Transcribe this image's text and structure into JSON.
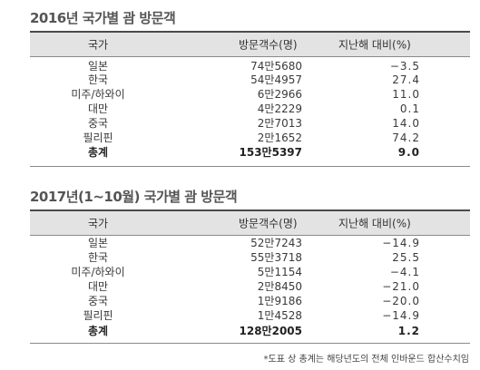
{
  "table1": {
    "title": "2016년 국가별 괌 방문객",
    "headers": [
      "국가",
      "방문객수(명)",
      "지난해 대비(%)"
    ],
    "rows": [
      {
        "country": "일본",
        "visitors": "74만5680",
        "change": "−3.5"
      },
      {
        "country": "한국",
        "visitors": "54만4957",
        "change": "27.4"
      },
      {
        "country": "미주/하와이",
        "visitors": "6만2966",
        "change": "11.0"
      },
      {
        "country": "대만",
        "visitors": "4만2229",
        "change": "0.1"
      },
      {
        "country": "중국",
        "visitors": "2만7013",
        "change": "14.0"
      },
      {
        "country": "필리핀",
        "visitors": "2만1652",
        "change": "74.2"
      }
    ],
    "total": {
      "country": "총계",
      "visitors": "153만5397",
      "change": "9.0"
    }
  },
  "table2": {
    "title": "2017년(1~10월) 국가별 괌 방문객",
    "headers": [
      "국가",
      "방문객수(명)",
      "지난해 대비(%)"
    ],
    "rows": [
      {
        "country": "일본",
        "visitors": "52만7243",
        "change": "−14.9"
      },
      {
        "country": "한국",
        "visitors": "55만3718",
        "change": "25.5"
      },
      {
        "country": "미주/하와이",
        "visitors": "5만1154",
        "change": "−4.1"
      },
      {
        "country": "대만",
        "visitors": "2만8450",
        "change": "−21.0"
      },
      {
        "country": "중국",
        "visitors": "1만9186",
        "change": "−20.0"
      },
      {
        "country": "필리핀",
        "visitors": "1만4528",
        "change": "−14.9"
      }
    ],
    "total": {
      "country": "총계",
      "visitors": "128만2005",
      "change": "1.2"
    }
  },
  "footnote": "*도표 상 총계는 해당년도의 전체 인바운드 합산수치임"
}
